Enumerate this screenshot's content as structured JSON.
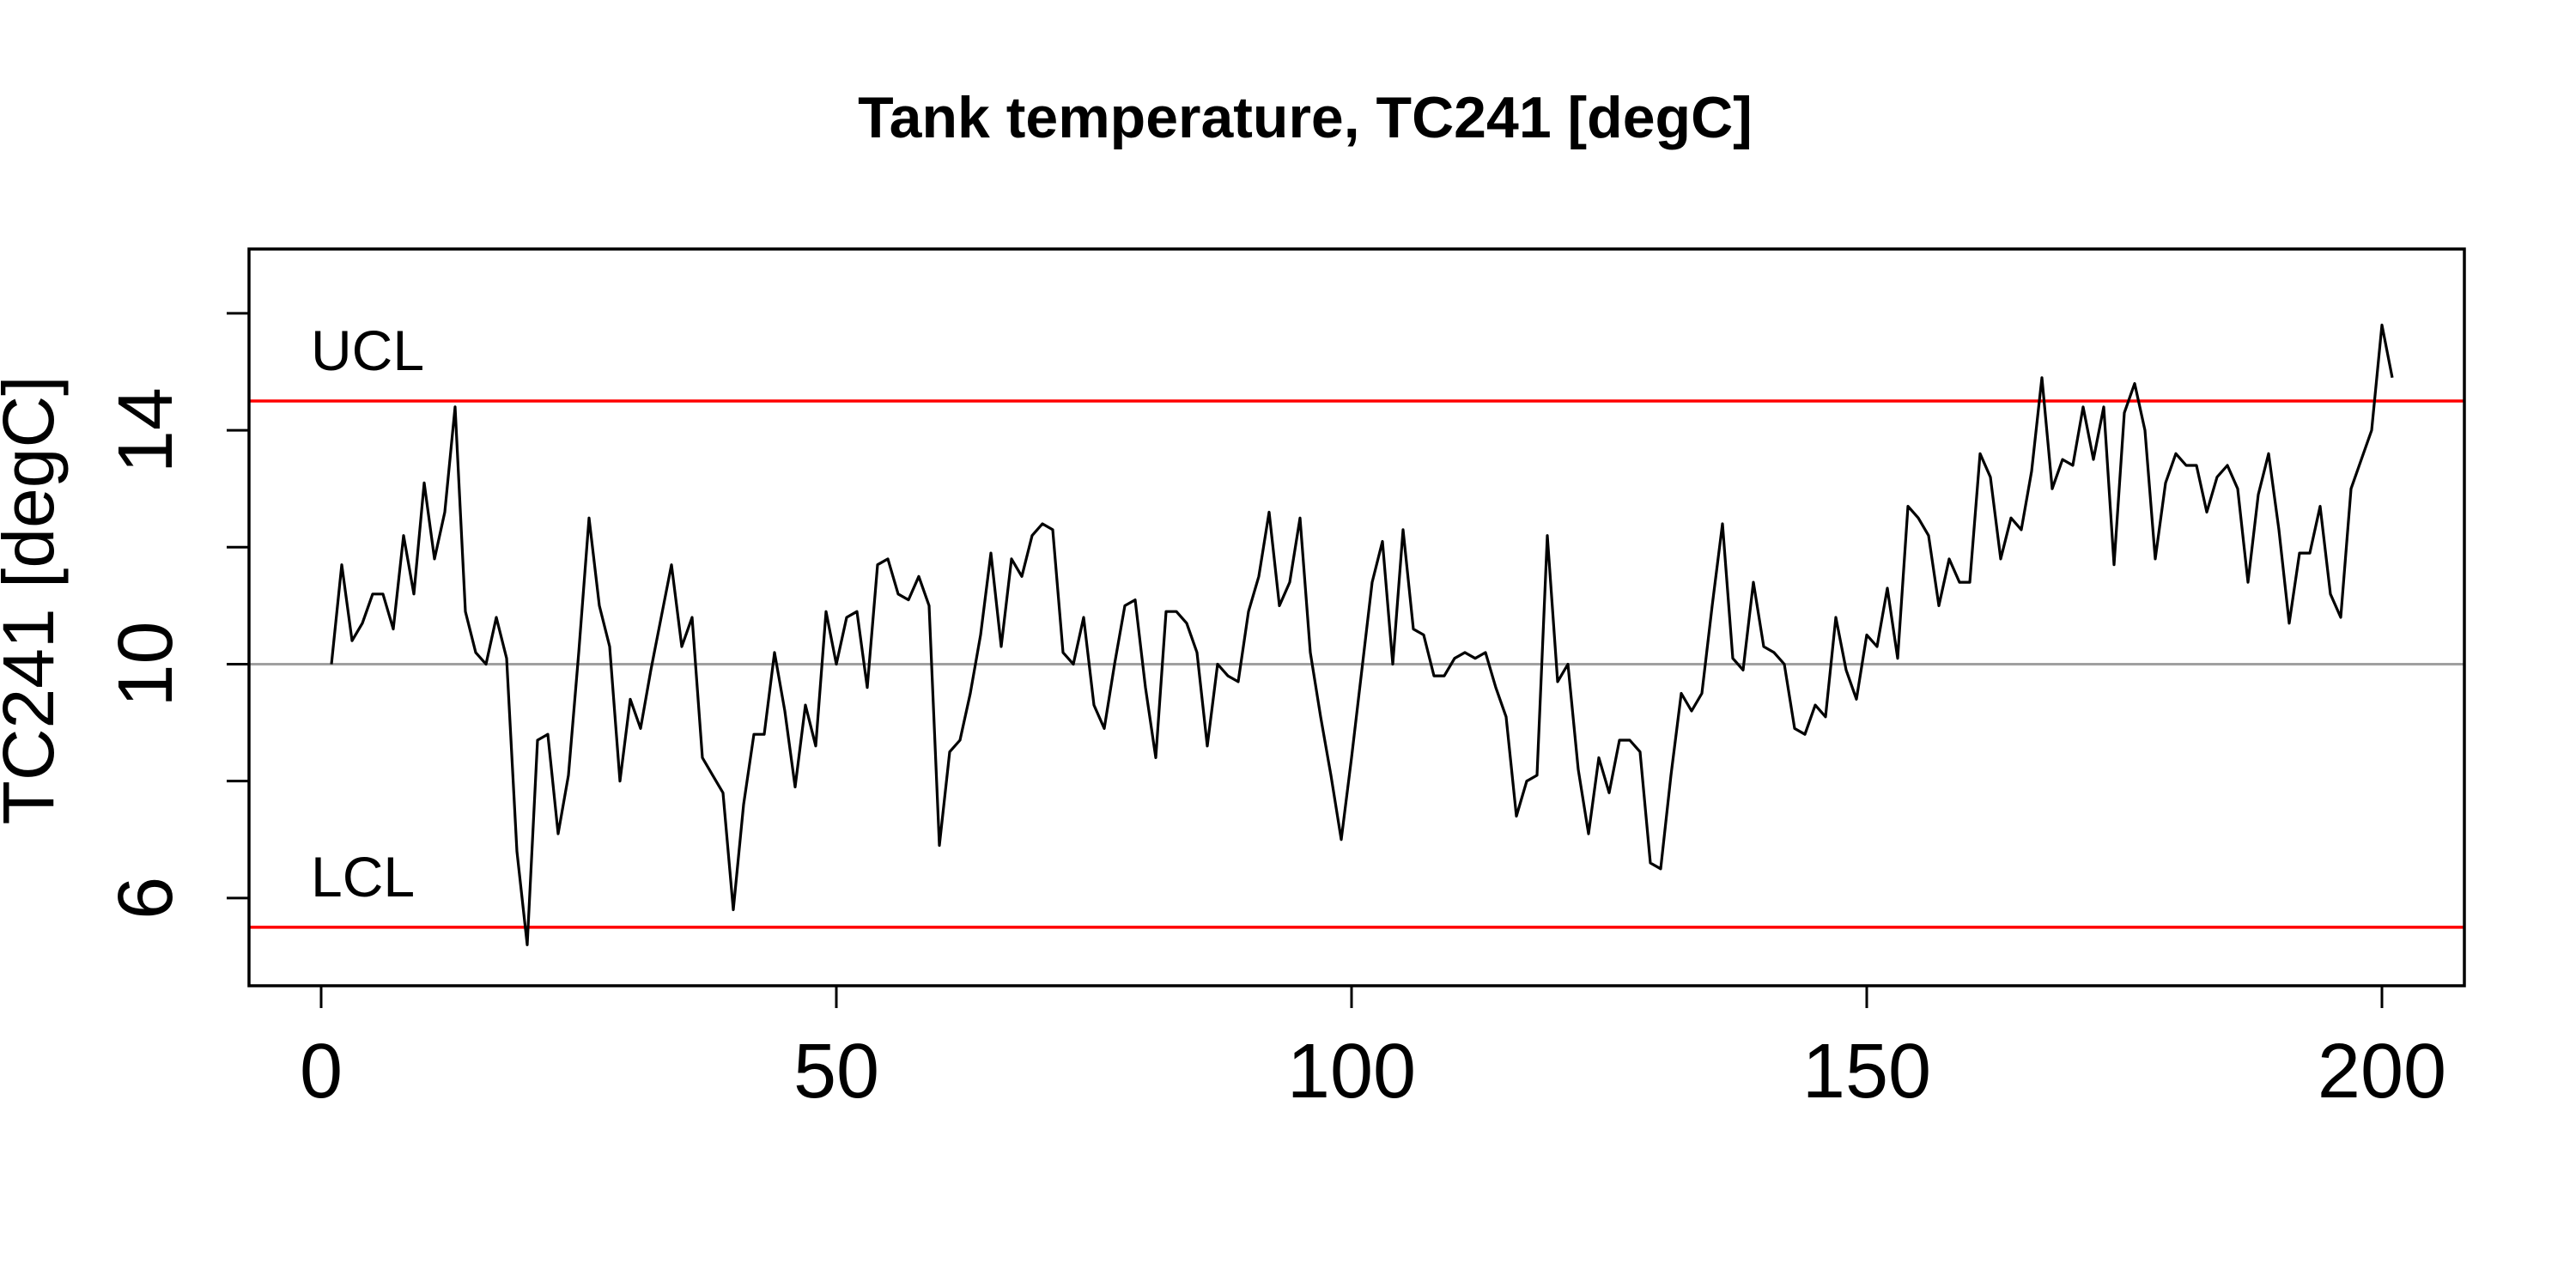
{
  "chart_data": {
    "type": "line",
    "title": "Tank temperature, TC241 [degC]",
    "xlabel": "",
    "ylabel": "TC241 [degC]",
    "xlim": [
      -7,
      208
    ],
    "ylim": [
      4.5,
      17.1
    ],
    "xticks": [
      0,
      50,
      100,
      150,
      200
    ],
    "xtick_labels": [
      "0",
      "50",
      "100",
      "150",
      "200"
    ],
    "yticks": [
      6,
      8,
      10,
      12,
      14,
      16
    ],
    "ytick_labels": [
      "6",
      "",
      "10",
      "",
      "14",
      ""
    ],
    "center_line": {
      "value": 10,
      "color": "#a0a0a0"
    },
    "control_limits": [
      {
        "name": "UCL",
        "value": 14.5,
        "color": "#ff0000"
      },
      {
        "name": "LCL",
        "value": 5.5,
        "color": "#ff0000"
      }
    ],
    "series": [
      {
        "color": "#000000",
        "x_start": 1,
        "values": [
          10.0,
          11.7,
          10.4,
          10.7,
          11.2,
          11.2,
          10.6,
          12.2,
          11.2,
          13.1,
          11.8,
          12.6,
          14.4,
          10.9,
          10.2,
          10.0,
          10.8,
          10.1,
          6.8,
          5.2,
          8.7,
          8.8,
          7.1,
          8.1,
          10.2,
          12.5,
          11.0,
          10.3,
          8.0,
          9.4,
          8.9,
          9.9,
          10.8,
          11.7,
          10.3,
          10.8,
          8.4,
          8.1,
          7.8,
          5.8,
          7.6,
          8.8,
          8.8,
          10.2,
          9.2,
          7.9,
          9.3,
          8.6,
          10.9,
          10.0,
          10.8,
          10.9,
          9.6,
          11.7,
          11.8,
          11.2,
          11.1,
          11.5,
          11.0,
          6.9,
          8.5,
          8.7,
          9.5,
          10.5,
          11.9,
          10.3,
          11.8,
          11.5,
          12.2,
          12.4,
          12.3,
          10.2,
          10.0,
          10.8,
          9.3,
          8.9,
          10.0,
          11.0,
          11.1,
          9.6,
          8.4,
          10.9,
          10.9,
          10.7,
          10.2,
          8.6,
          10.0,
          9.8,
          9.7,
          10.9,
          11.5,
          12.6,
          11.0,
          11.4,
          12.5,
          10.2,
          9.1,
          8.1,
          7.0,
          8.4,
          9.9,
          11.4,
          12.1,
          10.0,
          12.3,
          10.6,
          10.5,
          9.8,
          9.8,
          10.1,
          10.2,
          10.1,
          10.2,
          9.6,
          9.1,
          7.4,
          8.0,
          8.1,
          12.2,
          9.7,
          10.0,
          8.2,
          7.1,
          8.4,
          7.8,
          8.7,
          8.7,
          8.5,
          6.6,
          6.5,
          8.1,
          9.5,
          9.2,
          9.5,
          11.0,
          12.4,
          10.1,
          9.9,
          11.4,
          10.3,
          10.2,
          10.0,
          8.9,
          8.8,
          9.3,
          9.1,
          10.8,
          9.9,
          9.4,
          10.5,
          10.3,
          11.3,
          10.1,
          12.7,
          12.5,
          12.2,
          11.0,
          11.8,
          11.4,
          11.4,
          13.6,
          13.2,
          11.8,
          12.5,
          12.3,
          13.3,
          14.9,
          13.0,
          13.5,
          13.4,
          14.4,
          13.5,
          14.4,
          11.7,
          14.3,
          14.8,
          14.0,
          11.8,
          13.1,
          13.6,
          13.4,
          13.4,
          12.6,
          13.2,
          13.4,
          13.0,
          11.4,
          12.9,
          13.6,
          12.3,
          10.7,
          11.9,
          11.9,
          12.7,
          11.2,
          10.8,
          13.0,
          13.5,
          14.0,
          15.8,
          14.9
        ]
      }
    ]
  }
}
